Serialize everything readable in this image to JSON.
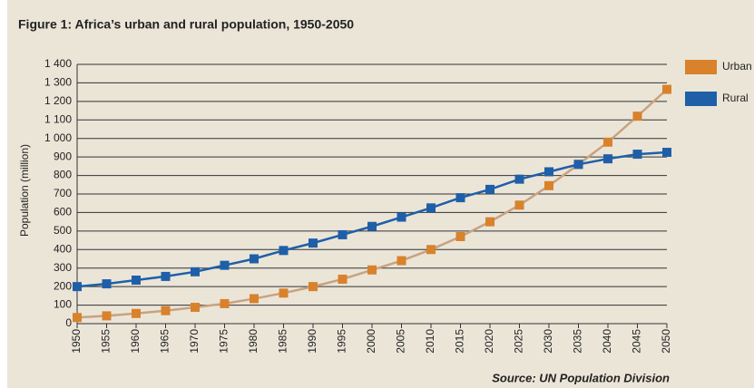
{
  "chart_data": {
    "type": "line",
    "title": "Figure 1: Africa’s urban and rural population, 1950-2050",
    "y_label": "Population (million)",
    "source": "Source: UN Population Division",
    "x": [
      1950,
      1955,
      1960,
      1965,
      1970,
      1975,
      1980,
      1985,
      1990,
      1995,
      2000,
      2005,
      2010,
      2015,
      2020,
      2025,
      2030,
      2035,
      2040,
      2045,
      2050
    ],
    "series": [
      {
        "name": "Urban",
        "color": "#d8822c",
        "line_color": "#c9a27f",
        "values": [
          33,
          42,
          55,
          70,
          88,
          108,
          135,
          165,
          200,
          240,
          290,
          340,
          400,
          470,
          550,
          640,
          745,
          860,
          980,
          1120,
          1265
        ]
      },
      {
        "name": "Rural",
        "color": "#1f5fa8",
        "line_color": "#1f5fa8",
        "values": [
          200,
          215,
          235,
          255,
          280,
          315,
          350,
          395,
          435,
          480,
          525,
          575,
          625,
          680,
          725,
          780,
          820,
          860,
          890,
          915,
          925
        ]
      }
    ],
    "xlim": [
      1950,
      2050
    ],
    "xticks": [
      1950,
      1955,
      1960,
      1965,
      1970,
      1975,
      1980,
      1985,
      1990,
      1995,
      2000,
      2005,
      2010,
      2015,
      2020,
      2025,
      2030,
      2035,
      2040,
      2045,
      2050
    ],
    "ylim": [
      0,
      1400
    ],
    "yticks": [
      0,
      100,
      200,
      300,
      400,
      500,
      600,
      700,
      800,
      900,
      {
        "value": 1000,
        "label": "1 000"
      },
      {
        "value": 1100,
        "label": "1 100"
      },
      {
        "value": 1200,
        "label": "1 200"
      },
      {
        "value": 1300,
        "label": "1 300"
      },
      {
        "value": 1400,
        "label": "1 400"
      }
    ],
    "grid": true,
    "legend": "right"
  }
}
